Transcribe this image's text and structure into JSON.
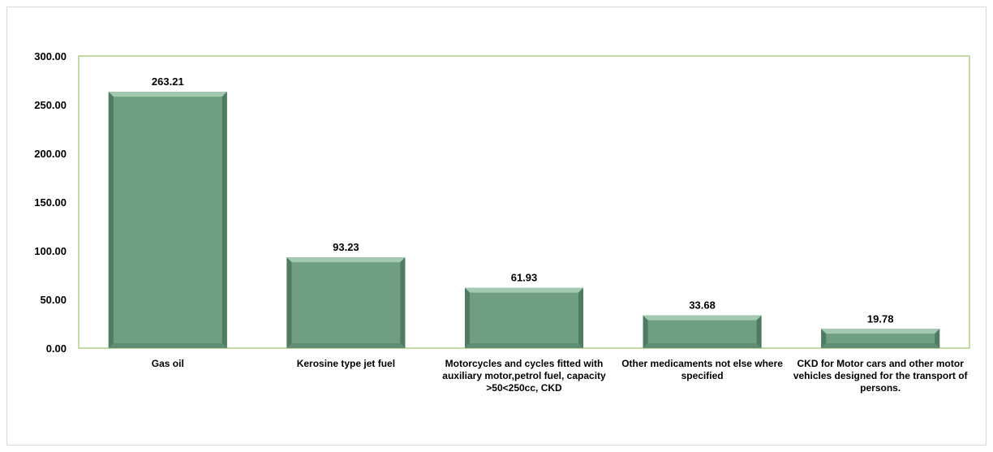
{
  "chart_data": {
    "type": "bar",
    "categories": [
      "Gas oil",
      "Kerosine type jet fuel",
      "Motorcycles and cycles fitted with auxiliary motor,petrol fuel, capacity >50<250cc, CKD",
      "Other medicaments not else where specified",
      "CKD for Motor cars and other motor vehicles designed for the transport of persons."
    ],
    "values": [
      263.21,
      93.23,
      61.93,
      33.68,
      19.78
    ],
    "data_labels": [
      "263.21",
      "93.23",
      "61.93",
      "33.68",
      "19.78"
    ],
    "yticks": [
      "0.00",
      "50.00",
      "100.00",
      "150.00",
      "200.00",
      "250.00",
      "300.00"
    ],
    "ylim": [
      0,
      300
    ],
    "title": "",
    "xlabel": "",
    "ylabel": "",
    "grid": false,
    "legend": "none",
    "colors": {
      "bar_face": "#6f9e82",
      "bar_top": "#a3c9b1",
      "bar_side": "#4f7c61",
      "bar_bottom": "#5f8d72",
      "plot_border": "#9bc26b"
    }
  }
}
